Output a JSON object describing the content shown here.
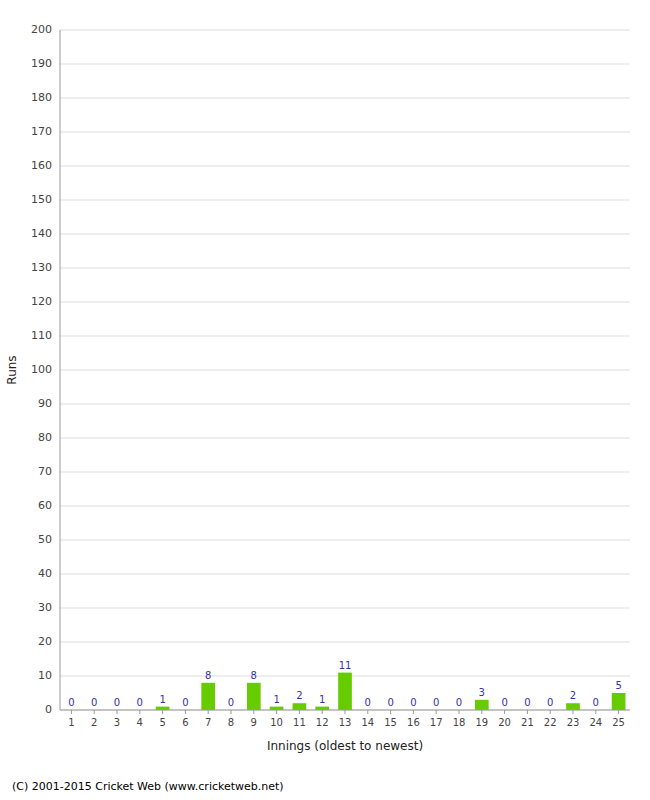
{
  "chart_data": {
    "type": "bar",
    "xlabel": "Innings (oldest to newest)",
    "ylabel": "Runs",
    "categories": [
      1,
      2,
      3,
      4,
      5,
      6,
      7,
      8,
      9,
      10,
      11,
      12,
      13,
      14,
      15,
      16,
      17,
      18,
      19,
      20,
      21,
      22,
      23,
      24,
      25
    ],
    "values": [
      0,
      0,
      0,
      0,
      1,
      0,
      8,
      0,
      8,
      1,
      2,
      1,
      11,
      0,
      0,
      0,
      0,
      0,
      3,
      0,
      0,
      0,
      2,
      0,
      5
    ],
    "color": "#66cc00",
    "ylim": [
      0,
      200
    ],
    "yticks": [
      0,
      10,
      20,
      30,
      40,
      50,
      60,
      70,
      80,
      90,
      100,
      110,
      120,
      130,
      140,
      150,
      160,
      170,
      180,
      190,
      200
    ],
    "grid": true,
    "data_labels": true,
    "annotations": [
      "(C) 2001-2015 Cricket Web (www.cricketweb.net)"
    ]
  }
}
